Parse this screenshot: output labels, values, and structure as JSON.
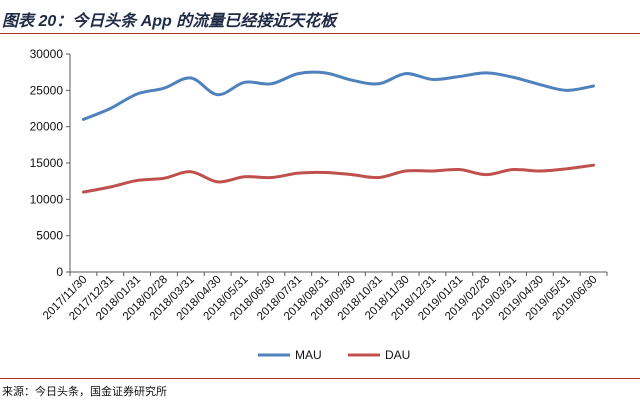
{
  "header": {
    "title": "图表 20：今日头条 App 的流量已经接近天花板"
  },
  "footer": {
    "source": "来源：今日头条，国金证券研究所"
  },
  "chart_data": {
    "type": "line",
    "categories": [
      "2017/11/30",
      "2017/12/31",
      "2018/01/31",
      "2018/02/28",
      "2018/03/31",
      "2018/04/30",
      "2018/05/31",
      "2018/06/30",
      "2018/07/31",
      "2018/08/31",
      "2018/09/30",
      "2018/10/31",
      "2018/11/30",
      "2018/12/31",
      "2019/01/31",
      "2019/02/28",
      "2019/03/31",
      "2019/04/30",
      "2019/05/31",
      "2019/06/30"
    ],
    "series": [
      {
        "name": "MAU",
        "color": "#4f81bd",
        "values": [
          21000,
          22500,
          24500,
          25300,
          26700,
          24400,
          26100,
          25900,
          27300,
          27400,
          26400,
          25900,
          27300,
          26500,
          26900,
          27400,
          26800,
          25800,
          25000,
          25600
        ]
      },
      {
        "name": "DAU",
        "color": "#c0504d",
        "values": [
          11000,
          11700,
          12600,
          12900,
          13800,
          12400,
          13100,
          13000,
          13600,
          13700,
          13400,
          13000,
          13900,
          13900,
          14100,
          13400,
          14100,
          13900,
          14200,
          14700
        ]
      }
    ],
    "yticks": [
      0,
      5000,
      10000,
      15000,
      20000,
      25000,
      30000
    ],
    "ylim": [
      0,
      30000
    ],
    "grid": false,
    "legend": "bottom"
  }
}
